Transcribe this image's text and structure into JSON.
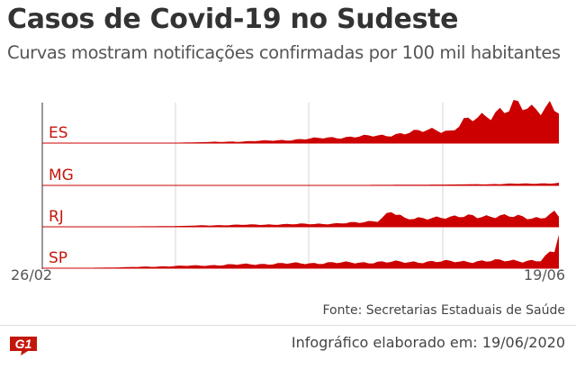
{
  "header": {
    "title": "Casos de Covid-19 no Sudeste",
    "subtitle": "Curvas mostram notificações confirmadas por 100 mil habitantes"
  },
  "chart_data": {
    "type": "area",
    "title": "Casos de Covid-19 no Sudeste",
    "subtitle": "Curvas mostram notificações confirmadas por 100 mil habitantes",
    "x_tick_labels": [
      "26/02",
      "19/06"
    ],
    "x_range": [
      "26/02",
      "19/06"
    ],
    "days": 115,
    "layout": "small-multiples",
    "grid": true,
    "series_color": "#cc0000",
    "series": [
      {
        "name": "ES",
        "anchors": [
          [
            0,
            0
          ],
          [
            30,
            0.2
          ],
          [
            45,
            0.8
          ],
          [
            55,
            1.5
          ],
          [
            63,
            2.5
          ],
          [
            68,
            2.8
          ],
          [
            75,
            3.5
          ],
          [
            82,
            5.0
          ],
          [
            87,
            6.5
          ],
          [
            90,
            5.5
          ],
          [
            93,
            9.5
          ],
          [
            97,
            12.0
          ],
          [
            100,
            15.0
          ],
          [
            104,
            17.0
          ],
          [
            108,
            15.0
          ],
          [
            112,
            18.5
          ],
          [
            114,
            16.0
          ]
        ]
      },
      {
        "name": "MG",
        "anchors": [
          [
            0,
            0
          ],
          [
            40,
            0.1
          ],
          [
            70,
            0.2
          ],
          [
            90,
            0.4
          ],
          [
            100,
            0.6
          ],
          [
            108,
            0.9
          ],
          [
            114,
            1.0
          ]
        ]
      },
      {
        "name": "RJ",
        "anchors": [
          [
            0,
            0
          ],
          [
            28,
            0.3
          ],
          [
            40,
            0.8
          ],
          [
            55,
            1.2
          ],
          [
            65,
            1.5
          ],
          [
            70,
            2.0
          ],
          [
            74,
            3.0
          ],
          [
            77,
            7.0
          ],
          [
            80,
            3.5
          ],
          [
            85,
            4.5
          ],
          [
            90,
            4.0
          ],
          [
            95,
            5.5
          ],
          [
            100,
            4.5
          ],
          [
            105,
            5.0
          ],
          [
            110,
            4.0
          ],
          [
            113,
            6.0
          ],
          [
            114,
            4.5
          ]
        ]
      },
      {
        "name": "SP",
        "anchors": [
          [
            0,
            0
          ],
          [
            15,
            0.3
          ],
          [
            30,
            1.0
          ],
          [
            45,
            1.8
          ],
          [
            55,
            2.2
          ],
          [
            65,
            2.5
          ],
          [
            75,
            2.8
          ],
          [
            85,
            3.0
          ],
          [
            95,
            3.2
          ],
          [
            105,
            3.6
          ],
          [
            110,
            3.4
          ],
          [
            113,
            8.0
          ],
          [
            114,
            16.0
          ]
        ]
      }
    ]
  },
  "footer": {
    "source": "Fonte: Secretarias Estaduais de Saúde",
    "logo_text": "G1",
    "credit": "Infográfico elaborado em: 19/06/2020"
  }
}
